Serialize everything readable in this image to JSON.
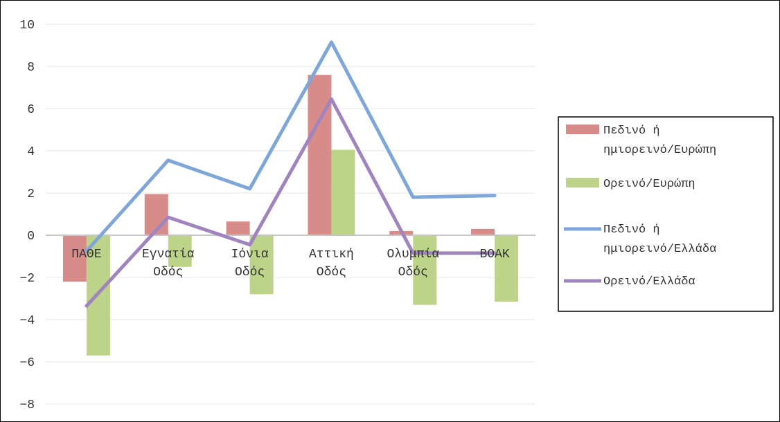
{
  "chart_data": {
    "type": "bar",
    "categories": [
      [
        "ΠΑΘΕ"
      ],
      [
        "Εγνατία",
        "Οδός"
      ],
      [
        "Ιόνια",
        "Οδός"
      ],
      [
        "Αττική",
        "Οδός"
      ],
      [
        "Ολυμπία",
        "Οδός"
      ],
      [
        "ΒΟΑΚ"
      ]
    ],
    "y_ticks": [
      "10",
      "8",
      "6",
      "4",
      "2",
      "0",
      "−2",
      "−4",
      "−6",
      "−8"
    ],
    "ylim": [
      -9,
      10
    ],
    "grid": true,
    "legend_position": "right",
    "series": [
      {
        "name": [
          "Πεδινό ή",
          "ημιορεινό/Ευρώπη"
        ],
        "kind": "bar",
        "color": "#d88c8a",
        "values": [
          -2.2,
          1.95,
          0.65,
          7.6,
          0.2,
          0.3
        ]
      },
      {
        "name": [
          "Ορεινό/Ευρώπη"
        ],
        "kind": "bar",
        "color": "#bcd389",
        "values": [
          -5.7,
          -1.5,
          -2.8,
          4.05,
          -3.3,
          -3.15
        ]
      },
      {
        "name": [
          "Πεδινό ή",
          "ημιορεινό/Ελλάδα"
        ],
        "kind": "line",
        "color": "#7ea6d8",
        "values": [
          -0.75,
          3.55,
          2.2,
          9.15,
          1.8,
          1.88
        ]
      },
      {
        "name": [
          "Ορεινό/Ελλάδα"
        ],
        "kind": "line",
        "color": "#9f84bd",
        "values": [
          -3.35,
          0.85,
          -0.45,
          6.45,
          -0.85,
          -0.85
        ]
      }
    ]
  }
}
